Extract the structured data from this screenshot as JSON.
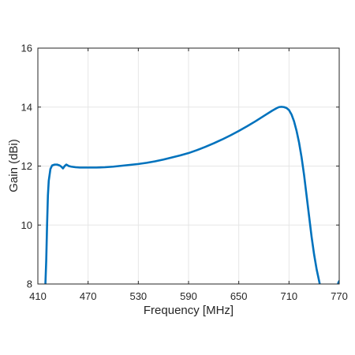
{
  "chart_data": {
    "type": "line",
    "title": "",
    "xlabel": "Frequency [MHz]",
    "ylabel": "Gain (dBi)",
    "xlim": [
      410,
      770
    ],
    "ylim": [
      8,
      16
    ],
    "xticks": [
      410,
      470,
      530,
      590,
      650,
      710,
      770
    ],
    "yticks": [
      8,
      10,
      12,
      14,
      16
    ],
    "grid": true,
    "legend": "none",
    "series": [
      {
        "color": "#0072BD",
        "x": [
          419,
          420,
          421,
          422,
          423,
          425,
          427,
          430,
          433,
          436,
          438,
          440,
          442,
          444,
          447,
          450,
          455,
          460,
          470,
          480,
          490,
          500,
          510,
          520,
          530,
          540,
          550,
          560,
          570,
          580,
          590,
          600,
          610,
          620,
          630,
          640,
          650,
          660,
          670,
          680,
          690,
          695,
          698,
          701,
          704,
          707,
          710,
          713,
          716,
          719,
          722,
          725,
          728,
          731,
          734,
          737,
          740,
          743,
          746,
          749,
          751,
          752
        ],
        "y": [
          8.0,
          8.8,
          10.0,
          11.0,
          11.5,
          11.9,
          12.02,
          12.05,
          12.05,
          12.02,
          11.98,
          11.92,
          12.0,
          12.05,
          12.0,
          11.98,
          11.96,
          11.95,
          11.95,
          11.95,
          11.96,
          11.98,
          12.01,
          12.04,
          12.07,
          12.11,
          12.16,
          12.22,
          12.29,
          12.36,
          12.44,
          12.54,
          12.65,
          12.77,
          12.9,
          13.04,
          13.19,
          13.35,
          13.52,
          13.7,
          13.88,
          13.96,
          14.0,
          14.01,
          14.0,
          13.97,
          13.9,
          13.75,
          13.52,
          13.2,
          12.8,
          12.3,
          11.7,
          11.0,
          10.3,
          9.6,
          9.0,
          8.5,
          8.1,
          7.7,
          7.4,
          7.3
        ]
      },
      {
        "color": "#0072BD",
        "x": [
          768,
          769,
          770
        ],
        "y": [
          7.95,
          8.05,
          8.1
        ]
      }
    ]
  }
}
